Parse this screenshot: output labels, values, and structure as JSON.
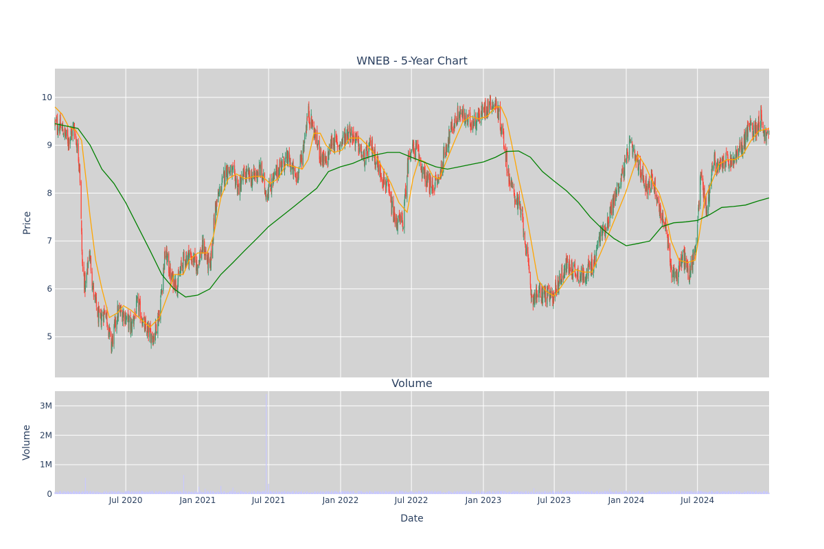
{
  "chart_data": {
    "type": "candlestick",
    "title": "WNEB - 5-Year Chart",
    "price_panel": {
      "ylabel": "Price",
      "ylim": [
        4.15,
        10.6
      ],
      "yticks": [
        5,
        6,
        7,
        8,
        9,
        10
      ],
      "grid": true,
      "background": "#d3d3d3"
    },
    "volume_panel": {
      "title": "Volume",
      "ylabel": "Volume",
      "ylim": [
        0,
        3500000
      ],
      "yticks": [
        {
          "value": 0,
          "label": "0"
        },
        {
          "value": 1000000,
          "label": "1M"
        },
        {
          "value": 2000000,
          "label": "2M"
        },
        {
          "value": 3000000,
          "label": "3M"
        }
      ],
      "grid": true,
      "background": "#d3d3d3",
      "bar_color": "#c8c8ff"
    },
    "x_axis": {
      "label": "Date",
      "range": [
        "2020-01-02",
        "2024-12-31"
      ],
      "ticks": [
        {
          "date": "2020-07-01",
          "label": "Jul 2020"
        },
        {
          "date": "2021-01-01",
          "label": "Jan 2021"
        },
        {
          "date": "2021-07-01",
          "label": "Jul 2021"
        },
        {
          "date": "2022-01-01",
          "label": "Jan 2022"
        },
        {
          "date": "2022-07-01",
          "label": "Jul 2022"
        },
        {
          "date": "2023-01-01",
          "label": "Jan 2023"
        },
        {
          "date": "2023-07-01",
          "label": "Jul 2023"
        },
        {
          "date": "2024-01-01",
          "label": "Jan 2024"
        },
        {
          "date": "2024-07-01",
          "label": "Jul 2024"
        }
      ]
    },
    "colors": {
      "increasing": "#3d9970",
      "decreasing": "#ff4136",
      "ma_short": "#ffa500",
      "ma_long": "#008000"
    },
    "price_path": [
      [
        "2020-01-02",
        9.45
      ],
      [
        "2020-01-20",
        9.35
      ],
      [
        "2020-02-05",
        9.1
      ],
      [
        "2020-02-20",
        9.4
      ],
      [
        "2020-03-05",
        8.6
      ],
      [
        "2020-03-12",
        6.5
      ],
      [
        "2020-03-20",
        6.0
      ],
      [
        "2020-03-30",
        6.8
      ],
      [
        "2020-04-10",
        5.9
      ],
      [
        "2020-04-25",
        5.3
      ],
      [
        "2020-05-10",
        5.6
      ],
      [
        "2020-05-25",
        4.8
      ],
      [
        "2020-06-10",
        5.5
      ],
      [
        "2020-06-25",
        5.5
      ],
      [
        "2020-07-15",
        5.2
      ],
      [
        "2020-08-01",
        5.7
      ],
      [
        "2020-08-20",
        5.15
      ],
      [
        "2020-09-10",
        5.0
      ],
      [
        "2020-09-25",
        5.5
      ],
      [
        "2020-10-10",
        6.8
      ],
      [
        "2020-10-25",
        6.2
      ],
      [
        "2020-11-10",
        6.1
      ],
      [
        "2020-11-25",
        6.6
      ],
      [
        "2020-12-10",
        6.7
      ],
      [
        "2020-12-30",
        6.5
      ],
      [
        "2021-01-15",
        6.9
      ],
      [
        "2021-02-01",
        6.4
      ],
      [
        "2021-02-15",
        7.7
      ],
      [
        "2021-03-01",
        8.1
      ],
      [
        "2021-03-15",
        8.5
      ],
      [
        "2021-04-01",
        8.4
      ],
      [
        "2021-04-15",
        8.1
      ],
      [
        "2021-05-01",
        8.4
      ],
      [
        "2021-05-20",
        8.3
      ],
      [
        "2021-06-10",
        8.5
      ],
      [
        "2021-06-25",
        8.0
      ],
      [
        "2021-07-15",
        8.3
      ],
      [
        "2021-08-01",
        8.6
      ],
      [
        "2021-08-20",
        8.7
      ],
      [
        "2021-09-10",
        8.3
      ],
      [
        "2021-09-25",
        8.8
      ],
      [
        "2021-10-10",
        9.7
      ],
      [
        "2021-10-25",
        9.3
      ],
      [
        "2021-11-10",
        8.8
      ],
      [
        "2021-11-25",
        8.6
      ],
      [
        "2021-12-10",
        9.1
      ],
      [
        "2021-12-30",
        9.0
      ],
      [
        "2022-01-20",
        9.3
      ],
      [
        "2022-02-10",
        9.1
      ],
      [
        "2022-03-01",
        8.7
      ],
      [
        "2022-03-20",
        9.0
      ],
      [
        "2022-04-10",
        8.5
      ],
      [
        "2022-05-01",
        8.1
      ],
      [
        "2022-05-20",
        7.4
      ],
      [
        "2022-06-10",
        7.4
      ],
      [
        "2022-06-25",
        8.9
      ],
      [
        "2022-07-15",
        8.9
      ],
      [
        "2022-08-01",
        8.4
      ],
      [
        "2022-08-20",
        8.1
      ],
      [
        "2022-09-10",
        8.3
      ],
      [
        "2022-09-25",
        8.9
      ],
      [
        "2022-10-10",
        9.3
      ],
      [
        "2022-11-01",
        9.7
      ],
      [
        "2022-11-20",
        9.5
      ],
      [
        "2022-12-10",
        9.5
      ],
      [
        "2022-12-30",
        9.7
      ],
      [
        "2023-01-20",
        9.9
      ],
      [
        "2023-02-05",
        9.8
      ],
      [
        "2023-02-20",
        9.2
      ],
      [
        "2023-03-10",
        8.2
      ],
      [
        "2023-03-25",
        7.9
      ],
      [
        "2023-04-10",
        7.5
      ],
      [
        "2023-04-25",
        6.5
      ],
      [
        "2023-05-05",
        5.8
      ],
      [
        "2023-05-20",
        5.9
      ],
      [
        "2023-06-05",
        5.9
      ],
      [
        "2023-06-25",
        5.8
      ],
      [
        "2023-07-15",
        6.2
      ],
      [
        "2023-08-01",
        6.5
      ],
      [
        "2023-08-20",
        6.4
      ],
      [
        "2023-09-10",
        6.25
      ],
      [
        "2023-09-25",
        6.4
      ],
      [
        "2023-10-10",
        6.5
      ],
      [
        "2023-10-25",
        7.1
      ],
      [
        "2023-11-10",
        7.3
      ],
      [
        "2023-11-25",
        7.7
      ],
      [
        "2023-12-10",
        8.1
      ],
      [
        "2023-12-30",
        8.6
      ],
      [
        "2024-01-10",
        9.0
      ],
      [
        "2024-01-25",
        8.7
      ],
      [
        "2024-02-10",
        8.4
      ],
      [
        "2024-02-25",
        8.1
      ],
      [
        "2024-03-10",
        8.3
      ],
      [
        "2024-03-25",
        7.7
      ],
      [
        "2024-04-10",
        7.3
      ],
      [
        "2024-04-25",
        6.4
      ],
      [
        "2024-05-10",
        6.3
      ],
      [
        "2024-05-25",
        6.7
      ],
      [
        "2024-06-10",
        6.3
      ],
      [
        "2024-06-25",
        6.8
      ],
      [
        "2024-07-10",
        8.4
      ],
      [
        "2024-07-25",
        7.6
      ],
      [
        "2024-08-10",
        8.7
      ],
      [
        "2024-08-25",
        8.5
      ],
      [
        "2024-09-10",
        8.7
      ],
      [
        "2024-09-25",
        8.6
      ],
      [
        "2024-10-10",
        8.8
      ],
      [
        "2024-10-25",
        9.0
      ],
      [
        "2024-11-10",
        9.4
      ],
      [
        "2024-11-25",
        9.3
      ],
      [
        "2024-12-10",
        9.6
      ],
      [
        "2024-12-20",
        9.2
      ],
      [
        "2024-12-31",
        9.2
      ]
    ],
    "ma_short_path": [
      [
        "2020-01-02",
        9.8
      ],
      [
        "2020-01-20",
        9.65
      ],
      [
        "2020-02-05",
        9.4
      ],
      [
        "2020-02-25",
        9.3
      ],
      [
        "2020-03-10",
        9.1
      ],
      [
        "2020-03-20",
        8.4
      ],
      [
        "2020-04-01",
        7.5
      ],
      [
        "2020-04-15",
        6.6
      ],
      [
        "2020-05-01",
        6.0
      ],
      [
        "2020-05-20",
        5.4
      ],
      [
        "2020-06-10",
        5.5
      ],
      [
        "2020-06-25",
        5.65
      ],
      [
        "2020-07-15",
        5.55
      ],
      [
        "2020-08-10",
        5.35
      ],
      [
        "2020-09-01",
        5.2
      ],
      [
        "2020-09-25",
        5.4
      ],
      [
        "2020-10-20",
        5.95
      ],
      [
        "2020-11-01",
        6.3
      ],
      [
        "2020-11-25",
        6.3
      ],
      [
        "2020-12-10",
        6.6
      ],
      [
        "2021-01-01",
        6.75
      ],
      [
        "2021-01-25",
        6.75
      ],
      [
        "2021-02-10",
        7.1
      ],
      [
        "2021-03-01",
        7.9
      ],
      [
        "2021-03-20",
        8.3
      ],
      [
        "2021-04-10",
        8.4
      ],
      [
        "2021-05-01",
        8.3
      ],
      [
        "2021-05-25",
        8.35
      ],
      [
        "2021-06-15",
        8.35
      ],
      [
        "2021-07-05",
        8.2
      ],
      [
        "2021-07-25",
        8.3
      ],
      [
        "2021-08-15",
        8.6
      ],
      [
        "2021-09-05",
        8.55
      ],
      [
        "2021-09-25",
        8.5
      ],
      [
        "2021-10-10",
        8.7
      ],
      [
        "2021-10-25",
        9.25
      ],
      [
        "2021-11-10",
        9.25
      ],
      [
        "2021-11-25",
        9.0
      ],
      [
        "2021-12-15",
        8.85
      ],
      [
        "2022-01-05",
        8.9
      ],
      [
        "2022-01-25",
        9.15
      ],
      [
        "2022-02-20",
        9.15
      ],
      [
        "2022-03-10",
        9.0
      ],
      [
        "2022-03-30",
        8.8
      ],
      [
        "2022-04-20",
        8.5
      ],
      [
        "2022-05-10",
        8.2
      ],
      [
        "2022-05-30",
        7.8
      ],
      [
        "2022-06-20",
        7.6
      ],
      [
        "2022-07-05",
        8.3
      ],
      [
        "2022-07-20",
        8.7
      ],
      [
        "2022-08-05",
        8.65
      ],
      [
        "2022-08-25",
        8.35
      ],
      [
        "2022-09-10",
        8.3
      ],
      [
        "2022-09-30",
        8.7
      ],
      [
        "2022-10-20",
        9.1
      ],
      [
        "2022-11-10",
        9.5
      ],
      [
        "2022-12-01",
        9.6
      ],
      [
        "2022-12-20",
        9.55
      ],
      [
        "2023-01-10",
        9.6
      ],
      [
        "2023-02-01",
        9.8
      ],
      [
        "2023-02-15",
        9.8
      ],
      [
        "2023-03-01",
        9.55
      ],
      [
        "2023-03-15",
        9.0
      ],
      [
        "2023-04-01",
        8.3
      ],
      [
        "2023-04-20",
        7.6
      ],
      [
        "2023-05-05",
        6.9
      ],
      [
        "2023-05-20",
        6.2
      ],
      [
        "2023-06-10",
        5.95
      ],
      [
        "2023-06-30",
        5.85
      ],
      [
        "2023-07-15",
        6.0
      ],
      [
        "2023-08-05",
        6.25
      ],
      [
        "2023-08-25",
        6.4
      ],
      [
        "2023-09-15",
        6.35
      ],
      [
        "2023-10-05",
        6.35
      ],
      [
        "2023-10-25",
        6.7
      ],
      [
        "2023-11-15",
        7.1
      ],
      [
        "2023-12-05",
        7.5
      ],
      [
        "2023-12-30",
        8.0
      ],
      [
        "2024-01-15",
        8.4
      ],
      [
        "2024-02-01",
        8.8
      ],
      [
        "2024-02-20",
        8.55
      ],
      [
        "2024-03-10",
        8.2
      ],
      [
        "2024-03-25",
        8.0
      ],
      [
        "2024-04-10",
        7.6
      ],
      [
        "2024-04-25",
        7.0
      ],
      [
        "2024-05-15",
        6.6
      ],
      [
        "2024-06-05",
        6.55
      ],
      [
        "2024-06-25",
        6.6
      ],
      [
        "2024-07-05",
        7.1
      ],
      [
        "2024-07-20",
        7.9
      ],
      [
        "2024-08-05",
        8.2
      ],
      [
        "2024-08-25",
        8.6
      ],
      [
        "2024-09-15",
        8.7
      ],
      [
        "2024-10-05",
        8.7
      ],
      [
        "2024-10-25",
        8.8
      ],
      [
        "2024-11-15",
        9.1
      ],
      [
        "2024-12-05",
        9.3
      ],
      [
        "2024-12-31",
        9.35
      ]
    ],
    "ma_long_path": [
      [
        "2020-01-02",
        9.45
      ],
      [
        "2020-02-01",
        9.4
      ],
      [
        "2020-03-01",
        9.35
      ],
      [
        "2020-04-01",
        9.0
      ],
      [
        "2020-05-01",
        8.5
      ],
      [
        "2020-06-01",
        8.2
      ],
      [
        "2020-07-01",
        7.8
      ],
      [
        "2020-08-01",
        7.3
      ],
      [
        "2020-09-01",
        6.8
      ],
      [
        "2020-10-01",
        6.3
      ],
      [
        "2020-11-01",
        6.0
      ],
      [
        "2020-12-01",
        5.83
      ],
      [
        "2021-01-01",
        5.87
      ],
      [
        "2021-02-01",
        6.0
      ],
      [
        "2021-03-01",
        6.3
      ],
      [
        "2021-04-01",
        6.55
      ],
      [
        "2021-05-01",
        6.8
      ],
      [
        "2021-06-01",
        7.05
      ],
      [
        "2021-07-01",
        7.3
      ],
      [
        "2021-08-01",
        7.5
      ],
      [
        "2021-09-01",
        7.7
      ],
      [
        "2021-10-01",
        7.9
      ],
      [
        "2021-11-01",
        8.1
      ],
      [
        "2021-12-01",
        8.45
      ],
      [
        "2022-01-01",
        8.55
      ],
      [
        "2022-02-01",
        8.62
      ],
      [
        "2022-03-01",
        8.72
      ],
      [
        "2022-04-01",
        8.8
      ],
      [
        "2022-05-01",
        8.85
      ],
      [
        "2022-06-01",
        8.85
      ],
      [
        "2022-07-01",
        8.75
      ],
      [
        "2022-08-01",
        8.65
      ],
      [
        "2022-09-01",
        8.55
      ],
      [
        "2022-10-01",
        8.5
      ],
      [
        "2022-11-01",
        8.55
      ],
      [
        "2022-12-01",
        8.6
      ],
      [
        "2023-01-01",
        8.65
      ],
      [
        "2023-02-01",
        8.75
      ],
      [
        "2023-03-01",
        8.87
      ],
      [
        "2023-04-01",
        8.88
      ],
      [
        "2023-05-01",
        8.75
      ],
      [
        "2023-06-01",
        8.45
      ],
      [
        "2023-07-01",
        8.25
      ],
      [
        "2023-08-01",
        8.05
      ],
      [
        "2023-09-01",
        7.8
      ],
      [
        "2023-10-01",
        7.5
      ],
      [
        "2023-11-01",
        7.25
      ],
      [
        "2023-12-01",
        7.05
      ],
      [
        "2024-01-01",
        6.9
      ],
      [
        "2024-02-01",
        6.95
      ],
      [
        "2024-03-01",
        7.0
      ],
      [
        "2024-04-01",
        7.3
      ],
      [
        "2024-05-01",
        7.38
      ],
      [
        "2024-06-01",
        7.4
      ],
      [
        "2024-07-01",
        7.43
      ],
      [
        "2024-08-01",
        7.55
      ],
      [
        "2024-09-01",
        7.7
      ],
      [
        "2024-10-01",
        7.72
      ],
      [
        "2024-11-01",
        7.75
      ],
      [
        "2024-12-01",
        7.83
      ],
      [
        "2024-12-31",
        7.9
      ]
    ],
    "volume_spikes": [
      [
        "2020-03-20",
        550000
      ],
      [
        "2020-11-26",
        650000
      ],
      [
        "2021-01-04",
        250000
      ],
      [
        "2021-01-20",
        180000
      ],
      [
        "2021-03-01",
        280000
      ],
      [
        "2021-04-01",
        220000
      ],
      [
        "2021-04-10",
        320000
      ],
      [
        "2021-06-25",
        3400000
      ],
      [
        "2021-07-01",
        350000
      ],
      [
        "2021-08-01",
        150000
      ],
      [
        "2023-05-10",
        200000
      ],
      [
        "2023-11-20",
        180000
      ]
    ],
    "volume_baseline": 70000
  }
}
